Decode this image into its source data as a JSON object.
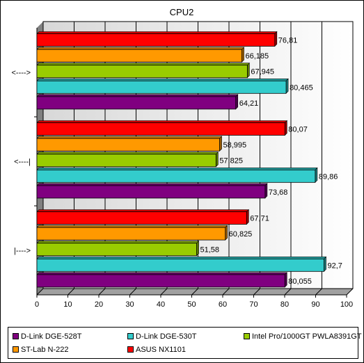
{
  "chart_data": {
    "type": "bar",
    "orientation": "horizontal",
    "title": "CPU2",
    "categories": [
      "<---->",
      "<----|",
      "|---->"
    ],
    "xlim": [
      0,
      100
    ],
    "xticks": [
      0,
      10,
      20,
      30,
      40,
      50,
      60,
      70,
      80,
      90,
      100
    ],
    "grid": true,
    "legend_position": "bottom",
    "series": [
      {
        "name": "D-Link DGE-528T",
        "color": "#800080",
        "values": [
          64.21,
          73.68,
          80.055
        ],
        "labels": [
          "64,21",
          "73,68",
          "80,055"
        ]
      },
      {
        "name": "D-Link DGE-530T",
        "color": "#33cccc",
        "values": [
          80.465,
          89.86,
          92.7
        ],
        "labels": [
          "80,465",
          "89,86",
          "92,7"
        ]
      },
      {
        "name": "Intel Pro/1000GT PWLA8391GT",
        "color": "#99cc00",
        "values": [
          67.945,
          57.825,
          51.58
        ],
        "labels": [
          "67,945",
          "57,825",
          "51,58"
        ]
      },
      {
        "name": "ST-Lab N-222",
        "color": "#ff9900",
        "values": [
          66.185,
          58.995,
          60.825
        ],
        "labels": [
          "66,185",
          "58,995",
          "60,825"
        ]
      },
      {
        "name": "ASUS NX1101",
        "color": "#ff0000",
        "values": [
          76.81,
          80.07,
          67.71
        ],
        "labels": [
          "76,81",
          "80,07",
          "67,71"
        ]
      }
    ]
  }
}
